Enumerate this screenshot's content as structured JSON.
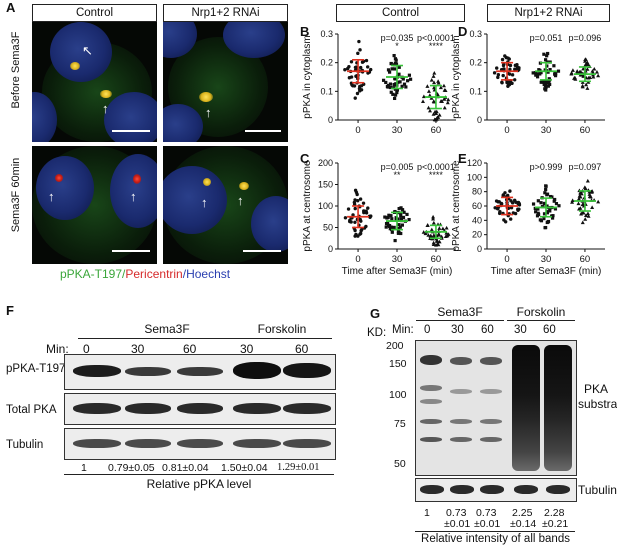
{
  "panel_A": {
    "letter": "A",
    "col_headers": [
      "Control",
      "Nrp1+2 RNAi"
    ],
    "row_labels": [
      "Before Sema3F",
      "Sema3F 60min"
    ],
    "legend": [
      "pPKA-T197/",
      "Pericentrin",
      "/Hoechst"
    ],
    "colors": {
      "green": "#3aa63a",
      "red": "#d62a2a",
      "blue": "#2a3fb0"
    }
  },
  "panel_B": {
    "letter": "B",
    "header": "Control",
    "ylabel": "pPKA in cytoplasm",
    "pvals": [
      "p=0.035",
      "p<0.0001"
    ],
    "stars": [
      "*",
      "****"
    ]
  },
  "panel_C": {
    "letter": "C",
    "ylabel": "pPKA at centrosome",
    "xlabel": "Time after Sema3F (min)",
    "pvals": [
      "p=0.005",
      "p<0.0001"
    ],
    "stars": [
      "**",
      "****"
    ]
  },
  "panel_D": {
    "letter": "D",
    "header": "Nrp1+2 RNAi",
    "ylabel": "pPKA in cytoplasm",
    "pvals": [
      "p=0.051",
      "p=0.096"
    ]
  },
  "panel_E": {
    "letter": "E",
    "ylabel": "pPKA at centrosome",
    "xlabel": "Time after Sema3F (min)",
    "pvals": [
      "p>0.999",
      "p=0.097"
    ]
  },
  "panel_F": {
    "letter": "F",
    "groups": [
      "Sema3F",
      "Forskolin"
    ],
    "min_label": "Min:",
    "mins": [
      "0",
      "30",
      "60",
      "30",
      "60"
    ],
    "rows": [
      "pPKA-T197",
      "Total PKA",
      "Tubulin"
    ],
    "quant": [
      "1",
      "0.79±0.05",
      "0.81±0.04",
      "1.50±0.04",
      "1.29±0.01"
    ],
    "quant_label": "Relative pPKA level"
  },
  "panel_G": {
    "letter": "G",
    "groups": [
      "Sema3F",
      "Forskolin"
    ],
    "min_label": "Min:",
    "mins": [
      "0",
      "30",
      "60",
      "30",
      "60"
    ],
    "kd_label": "KD:",
    "kd": [
      "200",
      "150",
      "100",
      "75",
      "50"
    ],
    "side_label": [
      "PKA",
      "substrate"
    ],
    "tubulin": "Tubulin",
    "quant_top": [
      "1",
      "0.73",
      "0.73",
      "2.25",
      "2.28"
    ],
    "quant_bot": [
      "",
      "±0.01",
      "±0.01",
      "±0.14",
      "±0.21"
    ],
    "quant_label": "Relative intensity of all bands"
  },
  "chart_data": [
    {
      "type": "scatter",
      "panel": "B",
      "title": "Control",
      "ylabel": "pPKA in cytoplasm",
      "categories": [
        "0",
        "30",
        "60"
      ],
      "means": [
        0.17,
        0.15,
        0.08
      ],
      "sd": [
        0.04,
        0.04,
        0.04
      ],
      "ylim": [
        0,
        0.3
      ],
      "yticks": [
        0,
        0.1,
        0.2,
        0.3
      ]
    },
    {
      "type": "scatter",
      "panel": "C",
      "ylabel": "pPKA at centrosome",
      "xlabel": "Time after Sema3F (min)",
      "categories": [
        "0",
        "30",
        "60"
      ],
      "means": [
        75,
        65,
        40
      ],
      "sd": [
        25,
        20,
        15
      ],
      "ylim": [
        0,
        200
      ],
      "yticks": [
        0,
        50,
        100,
        150,
        200
      ]
    },
    {
      "type": "scatter",
      "panel": "D",
      "title": "Nrp1+2 RNAi",
      "ylabel": "pPKA in cytoplasm",
      "categories": [
        "0",
        "30",
        "60"
      ],
      "means": [
        0.17,
        0.17,
        0.16
      ],
      "sd": [
        0.03,
        0.03,
        0.025
      ],
      "ylim": [
        0,
        0.3
      ],
      "yticks": [
        0,
        0.1,
        0.2,
        0.3
      ]
    },
    {
      "type": "scatter",
      "panel": "E",
      "ylabel": "pPKA at centrosome",
      "xlabel": "Time after Sema3F (min)",
      "categories": [
        "0",
        "30",
        "60"
      ],
      "means": [
        60,
        58,
        67
      ],
      "sd": [
        12,
        13,
        14
      ],
      "ylim": [
        0,
        120
      ],
      "yticks": [
        0,
        20,
        40,
        60,
        80,
        100,
        120
      ]
    }
  ]
}
